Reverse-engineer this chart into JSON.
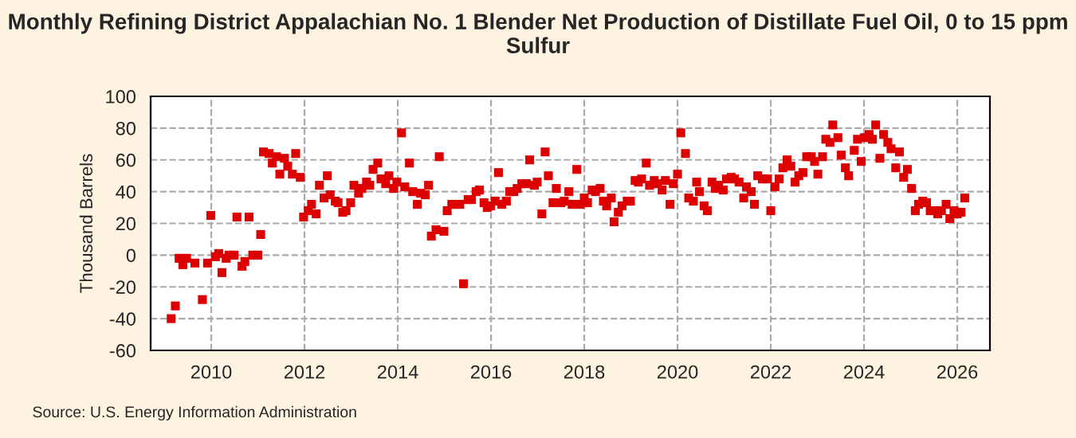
{
  "chart_data": {
    "type": "scatter",
    "title": "Monthly Refining District Appalachian No. 1 Blender Net Production of Distillate Fuel Oil, 0 to 15 ppm Sulfur",
    "ylabel": "Thousand Barrels",
    "annotations": [
      "Source: U.S. Energy Information Administration"
    ],
    "xlim": [
      2008.7,
      2026.7
    ],
    "xticks": [
      2010,
      2012,
      2014,
      2016,
      2018,
      2020,
      2022,
      2024,
      2026
    ],
    "ylim": [
      -60,
      100
    ],
    "yticks": [
      -60,
      -40,
      -20,
      0,
      20,
      40,
      60,
      80,
      100
    ],
    "grid": true,
    "marker": "square",
    "series": [
      {
        "color": "#dd0000",
        "x": [
          2009.14,
          2009.23,
          2009.31,
          2009.39,
          2009.47,
          2009.65,
          2009.81,
          2009.92,
          2009.99,
          2010.09,
          2010.16,
          2010.23,
          2010.32,
          2010.38,
          2010.49,
          2010.55,
          2010.66,
          2010.72,
          2010.81,
          2010.89,
          2011.0,
          2011.06,
          2011.12,
          2011.24,
          2011.31,
          2011.4,
          2011.47,
          2011.57,
          2011.64,
          2011.74,
          2011.81,
          2011.91,
          2011.98,
          2012.08,
          2012.15,
          2012.25,
          2012.32,
          2012.42,
          2012.49,
          2012.55,
          2012.66,
          2012.72,
          2012.82,
          2012.89,
          2012.99,
          2013.06,
          2013.16,
          2013.23,
          2013.33,
          2013.4,
          2013.47,
          2013.57,
          2013.64,
          2013.74,
          2013.81,
          2013.91,
          2013.98,
          2014.08,
          2014.15,
          2014.25,
          2014.32,
          2014.42,
          2014.49,
          2014.59,
          2014.66,
          2014.72,
          2014.82,
          2014.89,
          2014.99,
          2015.06,
          2015.16,
          2015.23,
          2015.33,
          2015.41,
          2015.51,
          2015.58,
          2015.68,
          2015.75,
          2015.85,
          2015.92,
          2015.99,
          2016.09,
          2016.16,
          2016.23,
          2016.33,
          2016.4,
          2016.49,
          2016.56,
          2016.66,
          2016.76,
          2016.83,
          2016.93,
          2016.99,
          2017.09,
          2017.16,
          2017.23,
          2017.33,
          2017.4,
          2017.5,
          2017.57,
          2017.67,
          2017.74,
          2017.84,
          2017.91,
          2018.0,
          2018.07,
          2018.17,
          2018.24,
          2018.34,
          2018.41,
          2018.48,
          2018.58,
          2018.64,
          2018.73,
          2018.81,
          2018.92,
          2018.99,
          2019.09,
          2019.16,
          2019.23,
          2019.33,
          2019.4,
          2019.5,
          2019.57,
          2019.67,
          2019.74,
          2019.84,
          2019.91,
          2020.0,
          2020.07,
          2020.17,
          2020.24,
          2020.34,
          2020.41,
          2020.47,
          2020.57,
          2020.64,
          2020.74,
          2020.81,
          2020.88,
          2020.98,
          2021.05,
          2021.15,
          2021.22,
          2021.32,
          2021.42,
          2021.48,
          2021.58,
          2021.65,
          2021.72,
          2021.82,
          2021.93,
          2022.0,
          2022.09,
          2022.18,
          2022.26,
          2022.35,
          2022.43,
          2022.52,
          2022.6,
          2022.69,
          2022.77,
          2022.87,
          2022.94,
          2023.01,
          2023.11,
          2023.18,
          2023.27,
          2023.33,
          2023.44,
          2023.51,
          2023.6,
          2023.67,
          2023.79,
          2023.86,
          2023.94,
          2024.01,
          2024.11,
          2024.18,
          2024.25,
          2024.34,
          2024.42,
          2024.51,
          2024.58,
          2024.68,
          2024.76,
          2024.85,
          2024.93,
          2025.02,
          2025.1,
          2025.17,
          2025.26,
          2025.34,
          2025.42,
          2025.5,
          2025.58,
          2025.66,
          2025.76,
          2025.84,
          2025.93,
          2026.0,
          2026.08,
          2026.16
        ],
        "values": [
          -40,
          -32,
          -2,
          -6,
          -2,
          -5,
          -28,
          -5,
          25,
          -1,
          1,
          -11,
          -2,
          0,
          0,
          24,
          -7,
          -4,
          24,
          0,
          0,
          13,
          65,
          64,
          58,
          62,
          51,
          61,
          56,
          51,
          64,
          49,
          24,
          28,
          32,
          26,
          44,
          36,
          50,
          38,
          34,
          33,
          27,
          28,
          33,
          44,
          39,
          42,
          46,
          44,
          54,
          58,
          48,
          45,
          50,
          42,
          46,
          77,
          43,
          58,
          40,
          32,
          39,
          38,
          44,
          12,
          16,
          62,
          15,
          28,
          32,
          32,
          32,
          -18,
          35,
          35,
          40,
          41,
          33,
          30,
          31,
          34,
          52,
          32,
          34,
          40,
          40,
          42,
          45,
          45,
          60,
          44,
          46,
          26,
          65,
          50,
          33,
          42,
          33,
          34,
          40,
          32,
          54,
          32,
          36,
          33,
          41,
          40,
          42,
          34,
          31,
          36,
          21,
          27,
          31,
          34,
          34,
          47,
          46,
          48,
          58,
          44,
          47,
          45,
          41,
          47,
          32,
          45,
          51,
          77,
          64,
          36,
          34,
          46,
          40,
          31,
          28,
          46,
          42,
          44,
          41,
          48,
          49,
          48,
          46,
          36,
          43,
          40,
          32,
          50,
          48,
          48,
          28,
          43,
          48,
          55,
          60,
          56,
          46,
          50,
          52,
          62,
          62,
          59,
          51,
          62,
          73,
          71,
          82,
          74,
          63,
          55,
          50,
          66,
          73,
          59,
          74,
          76,
          73,
          82,
          61,
          76,
          71,
          67,
          55,
          65,
          49,
          54,
          42,
          28,
          32,
          34,
          33,
          28,
          28,
          26,
          28,
          32,
          23,
          28,
          26,
          27,
          36
        ]
      }
    ]
  }
}
